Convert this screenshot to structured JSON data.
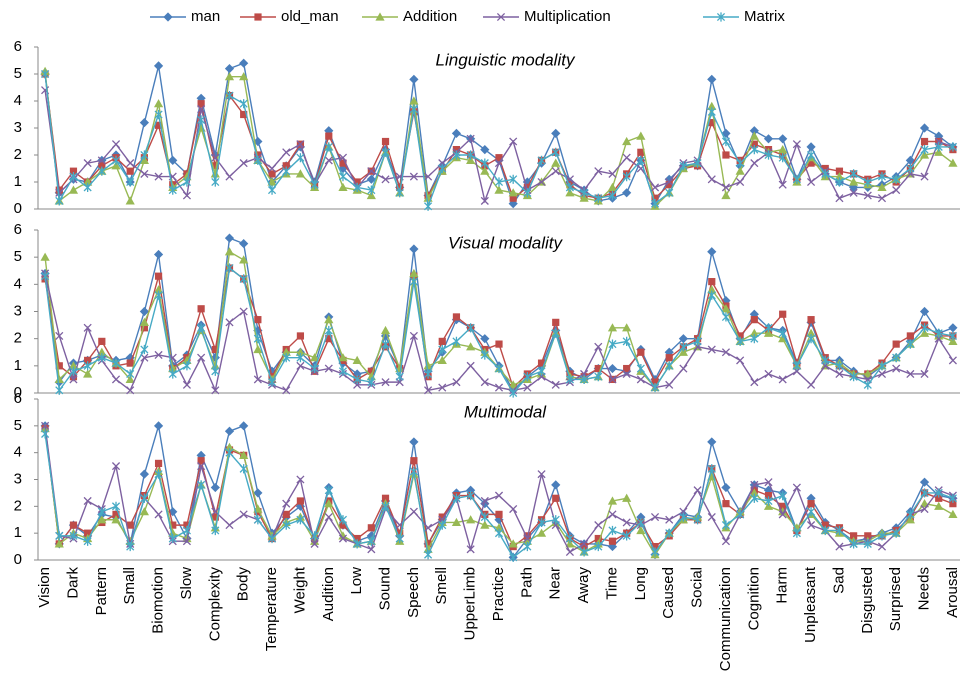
{
  "chart_data": [
    {
      "type": "line",
      "title": "Linguistic modality",
      "ylim": [
        0,
        6
      ],
      "yticks": [
        0,
        1,
        2,
        3,
        4,
        5,
        6
      ],
      "series": [
        {
          "name": "man",
          "color": "#4a7ebb",
          "marker": "diamond",
          "values": [
            5.0,
            0.6,
            1.1,
            1.0,
            1.8,
            2.0,
            1.0,
            3.2,
            5.3,
            1.8,
            1.3,
            4.1,
            2.0,
            5.2,
            5.4,
            2.5,
            1.0,
            1.6,
            2.3,
            1.0,
            2.9,
            1.5,
            0.9,
            1.1,
            2.2,
            0.8,
            4.8,
            0.5,
            1.6,
            2.8,
            2.6,
            2.2,
            1.8,
            0.2,
            1.0,
            1.7,
            2.8,
            1.0,
            0.7,
            0.3,
            0.4,
            0.6,
            1.8,
            0.2,
            1.1,
            1.6,
            1.6,
            4.8,
            2.8,
            1.6,
            2.9,
            2.6,
            2.6,
            1.1,
            2.3,
            1.3,
            1.0,
            0.8,
            0.8,
            0.9,
            1.2,
            1.8,
            3.0,
            2.7,
            2.3
          ]
        },
        {
          "name": "old_man",
          "color": "#be4b48",
          "marker": "square",
          "values": [
            5.0,
            0.7,
            1.4,
            1.0,
            1.6,
            1.9,
            1.4,
            1.9,
            3.1,
            0.9,
            1.3,
            3.9,
            1.6,
            4.2,
            3.5,
            2.0,
            1.3,
            1.6,
            2.4,
            0.9,
            2.7,
            1.7,
            1.0,
            1.4,
            2.5,
            0.8,
            3.6,
            0.5,
            1.4,
            2.2,
            2.0,
            1.6,
            1.9,
            0.4,
            0.8,
            1.8,
            2.1,
            0.9,
            0.5,
            0.4,
            0.6,
            1.3,
            2.1,
            0.4,
            0.9,
            1.5,
            1.6,
            3.2,
            2.0,
            1.8,
            2.4,
            2.2,
            2.0,
            1.1,
            1.7,
            1.5,
            1.4,
            1.3,
            1.1,
            1.3,
            1.0,
            1.5,
            2.5,
            2.5,
            2.2
          ]
        },
        {
          "name": "Addition",
          "color": "#98b954",
          "marker": "triangle",
          "values": [
            5.1,
            0.3,
            0.7,
            1.0,
            1.4,
            1.6,
            0.3,
            1.8,
            3.9,
            0.8,
            1.2,
            3.0,
            1.3,
            4.9,
            4.9,
            1.8,
            1.0,
            1.3,
            1.3,
            0.8,
            2.3,
            0.8,
            0.7,
            0.5,
            2.1,
            0.6,
            4.0,
            0.4,
            1.4,
            1.9,
            1.8,
            1.4,
            0.7,
            0.6,
            0.5,
            1.0,
            1.7,
            0.6,
            0.4,
            0.3,
            0.8,
            2.5,
            2.7,
            0.1,
            0.6,
            1.5,
            1.7,
            3.8,
            0.5,
            1.4,
            2.7,
            2.1,
            2.2,
            1.0,
            1.9,
            1.2,
            1.2,
            1.0,
            0.9,
            0.8,
            1.1,
            1.3,
            2.0,
            2.1,
            1.7
          ]
        },
        {
          "name": "Multiplication",
          "color": "#7d60a0",
          "marker": "x",
          "values": [
            4.4,
            0.6,
            1.1,
            1.7,
            1.8,
            2.4,
            1.7,
            1.3,
            1.2,
            1.2,
            0.5,
            3.7,
            1.9,
            1.2,
            1.7,
            1.9,
            1.5,
            2.1,
            2.4,
            0.9,
            1.8,
            1.9,
            0.8,
            1.4,
            1.1,
            1.2,
            1.2,
            1.2,
            1.7,
            2.1,
            2.6,
            0.3,
            1.7,
            2.5,
            0.7,
            1.0,
            1.4,
            1.1,
            0.7,
            1.4,
            1.3,
            1.9,
            1.5,
            0.8,
            1.0,
            1.7,
            1.8,
            1.1,
            0.8,
            1.0,
            1.7,
            2.1,
            0.9,
            2.4,
            1.0,
            1.4,
            0.4,
            0.6,
            0.5,
            0.4,
            0.7,
            1.3,
            1.2,
            2.5,
            2.3
          ]
        },
        {
          "name": "Matrix",
          "color": "#46aac5",
          "marker": "star",
          "values": [
            5.0,
            0.3,
            1.2,
            0.8,
            1.4,
            1.8,
            1.0,
            2.0,
            3.5,
            0.7,
            1.0,
            3.3,
            1.0,
            4.2,
            3.9,
            1.8,
            0.7,
            1.4,
            1.9,
            0.9,
            2.3,
            1.2,
            0.8,
            0.7,
            2.1,
            0.6,
            3.7,
            0.1,
            1.5,
            2.0,
            2.0,
            1.7,
            1.0,
            1.1,
            0.6,
            1.8,
            2.1,
            0.8,
            0.6,
            0.4,
            0.5,
            1.2,
            1.8,
            0.2,
            0.6,
            1.6,
            1.7,
            3.6,
            2.5,
            1.7,
            2.2,
            2.0,
            1.9,
            1.1,
            2.0,
            1.3,
            1.0,
            1.3,
            1.0,
            1.2,
            1.1,
            1.5,
            2.2,
            2.3,
            2.3
          ]
        }
      ]
    },
    {
      "type": "line",
      "title": "Visual modality",
      "ylim": [
        0,
        6
      ],
      "yticks": [
        0,
        1,
        2,
        3,
        4,
        5,
        6
      ],
      "series": [
        {
          "values": [
            4.4,
            0.4,
            1.1,
            1.2,
            1.4,
            1.2,
            1.3,
            3.0,
            5.1,
            1.0,
            1.4,
            2.5,
            1.3,
            5.7,
            5.5,
            2.3,
            0.8,
            1.5,
            1.5,
            1.0,
            2.8,
            1.1,
            0.7,
            0.8,
            2.1,
            0.9,
            5.3,
            0.8,
            1.5,
            2.7,
            2.4,
            2.0,
            1.0,
            0.1,
            0.6,
            1.0,
            2.3,
            0.8,
            0.5,
            0.9,
            0.9,
            0.8,
            1.6,
            0.5,
            1.5,
            2.0,
            2.0,
            5.2,
            3.4,
            2.0,
            2.9,
            2.4,
            2.3,
            1.1,
            2.6,
            1.2,
            1.2,
            0.8,
            0.6,
            1.0,
            1.3,
            1.9,
            3.0,
            2.2,
            2.4
          ]
        },
        {
          "values": [
            4.2,
            1.0,
            0.6,
            1.2,
            1.9,
            1.0,
            1.1,
            2.4,
            4.3,
            0.9,
            1.3,
            3.1,
            1.6,
            4.6,
            4.2,
            2.7,
            0.6,
            1.6,
            2.1,
            0.8,
            2.0,
            1.2,
            0.5,
            0.8,
            1.7,
            0.9,
            4.3,
            0.6,
            1.9,
            2.8,
            2.4,
            1.6,
            1.8,
            0.2,
            0.7,
            1.1,
            2.6,
            0.7,
            0.6,
            0.9,
            0.5,
            0.9,
            1.5,
            0.4,
            1.3,
            1.7,
            2.0,
            4.1,
            3.2,
            2.1,
            2.7,
            2.3,
            2.9,
            1.1,
            2.7,
            1.3,
            1.0,
            0.7,
            0.7,
            1.1,
            1.8,
            2.1,
            2.5,
            2.1,
            2.1
          ]
        },
        {
          "values": [
            5.0,
            0.5,
            1.0,
            0.7,
            1.5,
            1.1,
            0.5,
            2.6,
            3.8,
            0.9,
            1.2,
            2.3,
            1.0,
            5.2,
            4.9,
            1.6,
            0.5,
            1.5,
            1.5,
            1.3,
            2.7,
            1.3,
            1.2,
            0.6,
            2.3,
            0.9,
            4.4,
            1.0,
            1.2,
            1.8,
            1.7,
            1.5,
            0.9,
            0.3,
            0.5,
            0.7,
            2.2,
            0.6,
            0.5,
            0.6,
            2.4,
            2.4,
            0.8,
            0.2,
            1.0,
            1.5,
            1.7,
            3.8,
            3.1,
            1.9,
            2.2,
            2.2,
            2.0,
            1.0,
            2.2,
            1.0,
            1.1,
            0.7,
            0.7,
            1.0,
            1.3,
            1.8,
            2.2,
            2.1,
            1.9
          ]
        },
        {
          "values": [
            4.4,
            2.1,
            0.5,
            2.4,
            1.2,
            0.5,
            0.1,
            1.3,
            1.4,
            1.3,
            0.3,
            1.3,
            0.1,
            2.6,
            3.0,
            0.5,
            0.3,
            0.1,
            1.0,
            0.8,
            0.9,
            0.7,
            0.3,
            0.3,
            0.4,
            0.4,
            2.1,
            0.1,
            0.2,
            0.4,
            1.0,
            0.4,
            0.2,
            0.1,
            0.2,
            0.6,
            0.3,
            0.4,
            0.7,
            1.7,
            0.5,
            0.7,
            0.5,
            0.2,
            0.3,
            0.9,
            1.7,
            1.6,
            1.5,
            1.2,
            0.4,
            0.7,
            0.5,
            0.8,
            0.3,
            1.0,
            0.7,
            0.6,
            0.5,
            0.7,
            0.9,
            0.7,
            0.7,
            2.0,
            1.2
          ]
        },
        {
          "values": [
            4.3,
            0.1,
            0.8,
            1.0,
            1.3,
            1.1,
            0.7,
            1.6,
            3.6,
            0.7,
            1.0,
            2.4,
            0.8,
            4.6,
            4.2,
            2.0,
            0.4,
            1.3,
            1.3,
            0.9,
            2.3,
            0.8,
            0.5,
            0.4,
            1.8,
            0.6,
            4.1,
            0.7,
            1.6,
            1.9,
            2.4,
            1.4,
            0.9,
            0.0,
            0.6,
            0.8,
            2.2,
            0.5,
            0.5,
            0.6,
            1.8,
            1.9,
            0.9,
            0.2,
            1.0,
            1.7,
            1.9,
            3.6,
            2.8,
            1.9,
            2.0,
            2.4,
            2.2,
            1.0,
            2.0,
            1.2,
            1.0,
            0.6,
            0.3,
            1.0,
            1.3,
            1.8,
            2.4,
            2.2,
            2.1
          ]
        }
      ]
    },
    {
      "type": "line",
      "title": "Multimodal",
      "ylim": [
        0,
        6
      ],
      "yticks": [
        0,
        1,
        2,
        3,
        4,
        5,
        6
      ],
      "categories": [
        "Vision",
        null,
        "Dark",
        null,
        "Pattern",
        null,
        "Small",
        null,
        "Biomotion",
        null,
        "Slow",
        null,
        "Complexity",
        null,
        "Body",
        null,
        "Temperature",
        null,
        "Weight",
        null,
        "Audition",
        null,
        "Low",
        null,
        "Sound",
        null,
        "Speech",
        null,
        "Smell",
        null,
        "UpperLimb",
        null,
        "Practice",
        null,
        "Path",
        null,
        "Near",
        null,
        "Away",
        null,
        "Time",
        null,
        "Long",
        null,
        "Caused",
        null,
        "Social",
        null,
        "Communication",
        null,
        "Cognition",
        null,
        "Harm",
        null,
        "Unpleasant",
        null,
        "Sad",
        null,
        "Disgusted",
        null,
        "Surprised",
        null,
        "Needs",
        null,
        "Arousal"
      ],
      "series": [
        {
          "values": [
            5.0,
            0.6,
            1.3,
            0.9,
            1.7,
            1.6,
            0.6,
            3.2,
            5.0,
            1.8,
            0.8,
            3.9,
            2.7,
            4.8,
            5.0,
            2.5,
            1.0,
            1.6,
            2.0,
            0.8,
            2.7,
            1.3,
            0.7,
            0.9,
            2.2,
            0.9,
            4.4,
            0.6,
            1.5,
            2.5,
            2.6,
            2.1,
            1.5,
            0.1,
            0.8,
            1.4,
            2.8,
            0.9,
            0.6,
            0.6,
            0.5,
            1.0,
            1.6,
            0.2,
            1.0,
            1.7,
            1.6,
            4.4,
            2.7,
            1.8,
            2.8,
            2.6,
            2.5,
            1.1,
            2.3,
            1.4,
            1.1,
            0.7,
            0.8,
            1.0,
            1.2,
            1.8,
            2.9,
            2.4,
            2.3
          ]
        },
        {
          "values": [
            4.9,
            0.6,
            1.3,
            1.0,
            1.4,
            1.7,
            1.3,
            2.4,
            3.6,
            1.3,
            1.3,
            3.7,
            1.6,
            4.1,
            3.9,
            1.8,
            0.8,
            1.7,
            2.2,
            0.8,
            2.2,
            1.3,
            0.8,
            1.2,
            2.3,
            1.0,
            3.7,
            0.6,
            1.6,
            2.4,
            2.4,
            1.7,
            1.7,
            0.5,
            0.9,
            1.5,
            2.3,
            0.8,
            0.5,
            0.8,
            0.7,
            1.0,
            1.4,
            0.5,
            0.9,
            1.5,
            1.5,
            3.4,
            2.1,
            1.7,
            2.6,
            2.4,
            2.0,
            1.1,
            2.1,
            1.3,
            1.2,
            0.9,
            0.9,
            0.9,
            1.1,
            1.6,
            2.5,
            2.3,
            2.1
          ]
        },
        {
          "values": [
            4.9,
            0.6,
            1.0,
            0.8,
            1.5,
            1.5,
            0.7,
            1.8,
            3.3,
            1.0,
            0.8,
            2.8,
            1.2,
            4.2,
            3.9,
            1.9,
            0.9,
            1.4,
            1.6,
            0.7,
            2.1,
            0.9,
            0.6,
            0.7,
            2.1,
            0.7,
            3.2,
            0.4,
            1.4,
            1.4,
            1.5,
            1.3,
            1.2,
            0.6,
            0.7,
            1.0,
            1.4,
            0.6,
            0.3,
            0.6,
            2.2,
            2.3,
            1.1,
            0.2,
            1.0,
            1.5,
            1.6,
            3.1,
            1.2,
            1.8,
            2.5,
            2.0,
            1.8,
            1.2,
            1.7,
            1.1,
            1.0,
            0.7,
            0.7,
            1.0,
            1.0,
            1.5,
            2.1,
            2.0,
            1.7
          ]
        },
        {
          "values": [
            5.0,
            0.9,
            0.8,
            2.2,
            1.9,
            3.5,
            0.6,
            2.3,
            1.7,
            0.7,
            0.7,
            3.5,
            1.8,
            1.3,
            1.7,
            1.5,
            0.8,
            2.1,
            3.0,
            0.6,
            1.6,
            0.8,
            0.6,
            0.4,
            1.9,
            1.3,
            1.8,
            1.2,
            1.5,
            2.3,
            0.4,
            2.2,
            2.4,
            1.9,
            0.8,
            3.2,
            1.3,
            0.3,
            0.6,
            1.3,
            1.7,
            1.4,
            1.3,
            1.6,
            1.5,
            1.8,
            2.6,
            1.6,
            0.7,
            1.7,
            2.8,
            2.9,
            1.7,
            2.7,
            1.3,
            1.1,
            0.5,
            0.6,
            0.7,
            0.5,
            1.0,
            1.7,
            1.9,
            2.6,
            2.4
          ]
        },
        {
          "values": [
            4.7,
            0.9,
            0.9,
            0.7,
            1.8,
            2.0,
            0.5,
            2.3,
            3.2,
            0.8,
            1.1,
            2.8,
            1.1,
            4.0,
            3.4,
            1.5,
            0.8,
            1.3,
            1.5,
            0.9,
            2.6,
            1.5,
            0.6,
            0.7,
            2.0,
            0.8,
            3.3,
            0.2,
            1.3,
            2.3,
            2.4,
            1.6,
            1.0,
            0.1,
            0.5,
            1.4,
            1.5,
            0.8,
            0.3,
            0.5,
            1.1,
            0.9,
            1.4,
            0.3,
            1.0,
            1.6,
            1.5,
            3.4,
            1.3,
            1.7,
            2.3,
            2.2,
            2.4,
            1.0,
            1.8,
            1.1,
            1.1,
            0.6,
            0.6,
            0.9,
            1.0,
            1.7,
            2.5,
            2.5,
            2.3
          ]
        }
      ]
    }
  ]
}
